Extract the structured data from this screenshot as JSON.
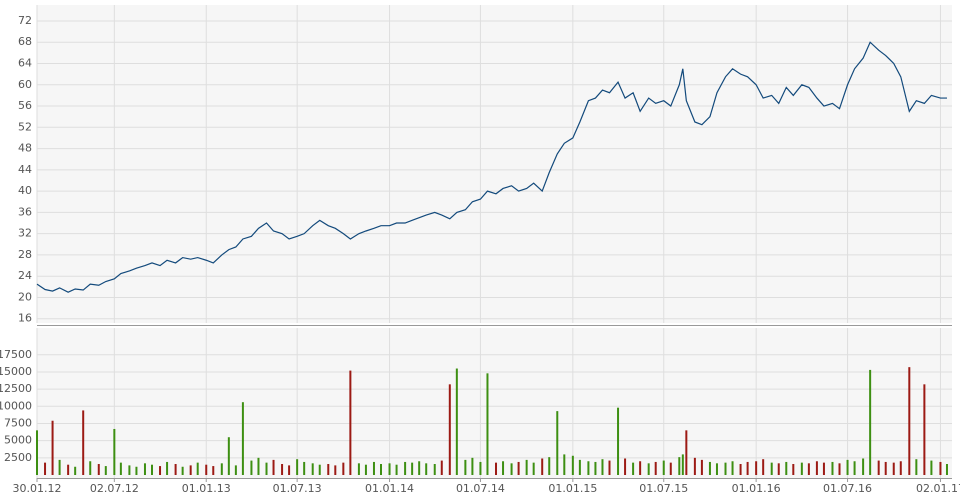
{
  "chart_data": [
    {
      "type": "line",
      "color": "#134a7c",
      "grid": true,
      "xlim": [
        "2012-01-30",
        "2017-01-25"
      ],
      "ylim": [
        15.2,
        75
      ],
      "yticks": [
        16,
        20,
        24,
        28,
        32,
        36,
        40,
        44,
        48,
        52,
        56,
        60,
        64,
        68,
        72
      ],
      "x": [
        "2012-01-30",
        "2012-02-15",
        "2012-03-01",
        "2012-03-15",
        "2012-04-01",
        "2012-04-15",
        "2012-05-01",
        "2012-05-15",
        "2012-06-01",
        "2012-06-15",
        "2012-07-02",
        "2012-07-15",
        "2012-08-01",
        "2012-08-15",
        "2012-09-01",
        "2012-09-15",
        "2012-10-01",
        "2012-10-15",
        "2012-11-01",
        "2012-11-15",
        "2012-12-01",
        "2012-12-15",
        "2013-01-01",
        "2013-01-15",
        "2013-02-01",
        "2013-02-15",
        "2013-03-01",
        "2013-03-15",
        "2013-04-01",
        "2013-04-15",
        "2013-05-01",
        "2013-05-15",
        "2013-06-01",
        "2013-06-15",
        "2013-07-01",
        "2013-07-15",
        "2013-08-01",
        "2013-08-15",
        "2013-09-01",
        "2013-09-15",
        "2013-10-01",
        "2013-10-15",
        "2013-11-01",
        "2013-11-15",
        "2013-12-01",
        "2013-12-15",
        "2014-01-01",
        "2014-01-15",
        "2014-02-01",
        "2014-02-15",
        "2014-03-01",
        "2014-03-15",
        "2014-04-01",
        "2014-04-15",
        "2014-05-01",
        "2014-05-15",
        "2014-06-01",
        "2014-06-15",
        "2014-07-01",
        "2014-07-15",
        "2014-08-01",
        "2014-08-15",
        "2014-09-01",
        "2014-09-15",
        "2014-10-01",
        "2014-10-15",
        "2014-11-01",
        "2014-11-15",
        "2014-12-01",
        "2014-12-15",
        "2015-01-01",
        "2015-01-15",
        "2015-02-01",
        "2015-02-15",
        "2015-03-01",
        "2015-03-15",
        "2015-04-01",
        "2015-04-15",
        "2015-05-01",
        "2015-05-15",
        "2015-06-01",
        "2015-06-15",
        "2015-07-01",
        "2015-07-15",
        "2015-08-01",
        "2015-08-08",
        "2015-08-15",
        "2015-09-01",
        "2015-09-15",
        "2015-10-01",
        "2015-10-15",
        "2015-11-01",
        "2015-11-15",
        "2015-12-01",
        "2015-12-15",
        "2016-01-01",
        "2016-01-15",
        "2016-02-01",
        "2016-02-15",
        "2016-03-01",
        "2016-03-15",
        "2016-04-01",
        "2016-04-15",
        "2016-05-01",
        "2016-05-15",
        "2016-06-01",
        "2016-06-15",
        "2016-07-01",
        "2016-07-15",
        "2016-08-01",
        "2016-08-15",
        "2016-09-01",
        "2016-09-15",
        "2016-10-01",
        "2016-10-15",
        "2016-11-01",
        "2016-11-15",
        "2016-12-01",
        "2016-12-15",
        "2017-01-02",
        "2017-01-15"
      ],
      "values": [
        22.5,
        21.5,
        21.2,
        21.8,
        21.0,
        21.6,
        21.4,
        22.5,
        22.3,
        23.0,
        23.5,
        24.5,
        25.0,
        25.5,
        26.0,
        26.5,
        26.0,
        27.0,
        26.5,
        27.5,
        27.2,
        27.5,
        27.0,
        26.5,
        28.0,
        29.0,
        29.5,
        31.0,
        31.5,
        33.0,
        34.0,
        32.5,
        32.0,
        31.0,
        31.5,
        32.0,
        33.5,
        34.5,
        33.5,
        33.0,
        32.0,
        31.0,
        32.0,
        32.5,
        33.0,
        33.5,
        33.5,
        34.0,
        34.0,
        34.5,
        35.0,
        35.5,
        36.0,
        35.5,
        34.8,
        36.0,
        36.5,
        38.0,
        38.5,
        40.0,
        39.5,
        40.5,
        41.0,
        40.0,
        40.5,
        41.5,
        40.0,
        43.5,
        47.0,
        49.0,
        50.0,
        53.0,
        57.0,
        57.5,
        59.0,
        58.5,
        60.5,
        57.5,
        58.5,
        55.0,
        57.5,
        56.5,
        57.0,
        56.0,
        60.0,
        63.0,
        57.0,
        53.0,
        52.5,
        54.0,
        58.5,
        61.5,
        63.0,
        62.0,
        61.5,
        60.0,
        57.5,
        58.0,
        56.5,
        59.5,
        58.0,
        60.0,
        59.5,
        57.5,
        56.0,
        56.5,
        55.5,
        60.0,
        63.0,
        65.0,
        68.0,
        66.5,
        65.5,
        64.0,
        61.5,
        55.0,
        57.0,
        56.5,
        58.0,
        57.5,
        57.5
      ]
    },
    {
      "type": "bar",
      "up_color": "#3d8f12",
      "down_color": "#9c1a14",
      "grid": true,
      "xlim": [
        "2012-01-30",
        "2017-01-25"
      ],
      "ylim": [
        0,
        21400
      ],
      "yticks": [
        2500,
        5000,
        7500,
        10000,
        12500,
        15000,
        17500
      ],
      "xticks": [
        {
          "value": "2012-01-30",
          "label": "30.01.12"
        },
        {
          "value": "2012-07-02",
          "label": "02.07.12"
        },
        {
          "value": "2013-01-01",
          "label": "01.01.13"
        },
        {
          "value": "2013-07-01",
          "label": "01.07.13"
        },
        {
          "value": "2014-01-01",
          "label": "01.01.14"
        },
        {
          "value": "2014-07-01",
          "label": "01.07.14"
        },
        {
          "value": "2015-01-01",
          "label": "01.01.15"
        },
        {
          "value": "2015-07-01",
          "label": "01.07.15"
        },
        {
          "value": "2016-01-01",
          "label": "01.01.16"
        },
        {
          "value": "2016-07-01",
          "label": "01.07.16"
        },
        {
          "value": "2017-01-02",
          "label": "02.01.17"
        }
      ],
      "values": [
        6500,
        1800,
        7900,
        2200,
        1500,
        1200,
        9400,
        2000,
        1600,
        1300,
        6700,
        1800,
        1400,
        1200,
        1700,
        1500,
        1300,
        1900,
        1600,
        1200,
        1400,
        1800,
        1500,
        1300,
        1700,
        5500,
        1400,
        10600,
        2100,
        2500,
        1800,
        2200,
        1600,
        1400,
        2300,
        1900,
        1700,
        1500,
        1600,
        1400,
        1800,
        15200,
        1700,
        1500,
        1900,
        1600,
        1700,
        1500,
        1900,
        1800,
        2000,
        1700,
        1600,
        2100,
        13200,
        15500,
        2200,
        2500,
        1900,
        14800,
        1800,
        2000,
        1700,
        1900,
        2200,
        1800,
        2400,
        2600,
        9300,
        3000,
        2800,
        2200,
        2000,
        1900,
        2300,
        2100,
        9800,
        2400,
        1800,
        2000,
        1700,
        1900,
        2100,
        1800,
        2600,
        3000,
        6500,
        2500,
        2200,
        1900,
        1700,
        1800,
        2000,
        1600,
        1900,
        2000,
        2300,
        1800,
        1700,
        1900,
        1600,
        1800,
        1700,
        2000,
        1800,
        1900,
        1700,
        2200,
        2000,
        2400,
        15300,
        2100,
        1900,
        1800,
        2000,
        15700,
        2300,
        13200,
        2100,
        1900,
        1600
      ]
    }
  ]
}
